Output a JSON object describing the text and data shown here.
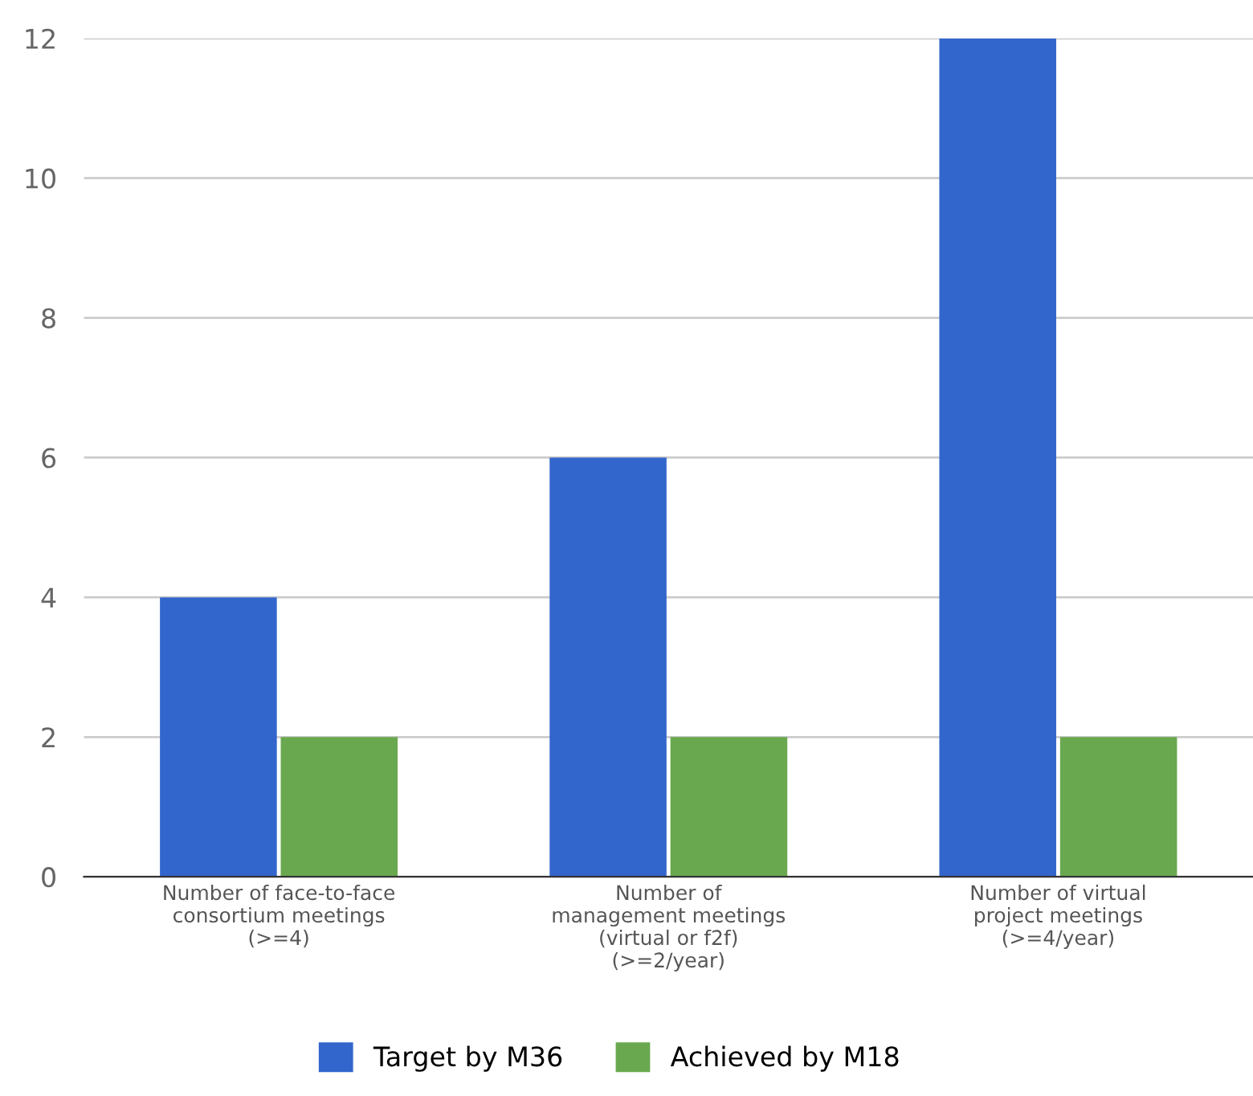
{
  "chart_data": {
    "type": "bar",
    "categories": [
      "Number of face-to-face\nconsortium meetings\n(>=4)",
      "Number of\nmanagement meetings\n(virtual or f2f)\n(>=2/year)",
      "Number of virtual\nproject meetings\n(>=4/year)"
    ],
    "series": [
      {
        "name": "Target by M36",
        "color": "#3366cc",
        "values": [
          4,
          6,
          12
        ]
      },
      {
        "name": "Achieved by M18",
        "color": "#6aa84f",
        "values": [
          2,
          2,
          2
        ]
      }
    ],
    "ylim": [
      0,
      12
    ],
    "yticks": [
      0,
      2,
      4,
      6,
      8,
      10,
      12
    ],
    "grid": "y",
    "legend": "bottom"
  }
}
